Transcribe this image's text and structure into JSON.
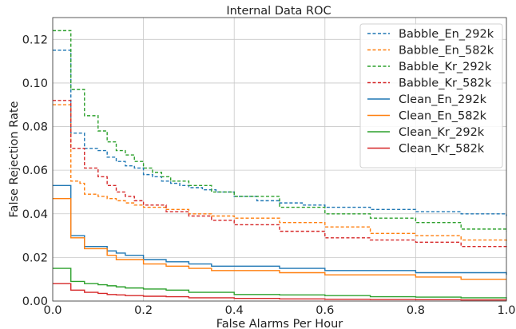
{
  "chart_data": {
    "type": "line",
    "title": "Internal Data ROC",
    "xlabel": "False Alarms Per Hour",
    "ylabel": "False Rejection Rate",
    "xlim": [
      0.0,
      1.0
    ],
    "ylim": [
      0.0,
      0.13
    ],
    "xticks": [
      0.0,
      0.2,
      0.4,
      0.6,
      0.8,
      1.0
    ],
    "xtick_labels": [
      "0.0",
      "0.2",
      "0.4",
      "0.6",
      "0.8",
      "1.0"
    ],
    "yticks": [
      0.0,
      0.02,
      0.04,
      0.06,
      0.08,
      0.1,
      0.12
    ],
    "ytick_labels": [
      "0.00",
      "0.02",
      "0.04",
      "0.06",
      "0.08",
      "0.10",
      "0.12"
    ],
    "grid": true,
    "legend_position": "upper right",
    "series": [
      {
        "name": "Babble_En_292k",
        "color": "#1f77b4",
        "style": "dashed",
        "x": [
          0,
          0.03,
          0.04,
          0.06,
          0.07,
          0.1,
          0.12,
          0.14,
          0.16,
          0.18,
          0.2,
          0.22,
          0.24,
          0.26,
          0.28,
          0.3,
          0.33,
          0.36,
          0.4,
          0.45,
          0.5,
          0.55,
          0.6,
          0.7,
          0.8,
          0.9,
          1.0
        ],
        "y": [
          0.115,
          0.115,
          0.077,
          0.077,
          0.07,
          0.069,
          0.066,
          0.064,
          0.062,
          0.061,
          0.058,
          0.057,
          0.055,
          0.054,
          0.053,
          0.052,
          0.051,
          0.05,
          0.048,
          0.046,
          0.045,
          0.044,
          0.043,
          0.042,
          0.041,
          0.04,
          0.039
        ]
      },
      {
        "name": "Babble_En_582k",
        "color": "#ff7f0e",
        "style": "dashed",
        "x": [
          0,
          0.03,
          0.04,
          0.06,
          0.07,
          0.1,
          0.12,
          0.14,
          0.16,
          0.18,
          0.2,
          0.25,
          0.3,
          0.35,
          0.4,
          0.5,
          0.6,
          0.7,
          0.8,
          0.9,
          1.0
        ],
        "y": [
          0.09,
          0.09,
          0.055,
          0.054,
          0.049,
          0.048,
          0.047,
          0.046,
          0.045,
          0.044,
          0.043,
          0.042,
          0.04,
          0.039,
          0.038,
          0.036,
          0.034,
          0.031,
          0.03,
          0.028,
          0.027
        ]
      },
      {
        "name": "Babble_Kr_292k",
        "color": "#2ca02c",
        "style": "dashed",
        "x": [
          0,
          0.03,
          0.04,
          0.06,
          0.07,
          0.1,
          0.12,
          0.14,
          0.16,
          0.18,
          0.2,
          0.22,
          0.24,
          0.26,
          0.3,
          0.35,
          0.4,
          0.5,
          0.6,
          0.7,
          0.8,
          0.9,
          1.0
        ],
        "y": [
          0.124,
          0.124,
          0.097,
          0.097,
          0.085,
          0.078,
          0.073,
          0.069,
          0.067,
          0.064,
          0.061,
          0.059,
          0.057,
          0.055,
          0.053,
          0.05,
          0.048,
          0.043,
          0.04,
          0.038,
          0.036,
          0.033,
          0.032
        ]
      },
      {
        "name": "Babble_Kr_582k",
        "color": "#d62728",
        "style": "dashed",
        "x": [
          0,
          0.03,
          0.04,
          0.06,
          0.07,
          0.1,
          0.12,
          0.14,
          0.16,
          0.18,
          0.2,
          0.25,
          0.3,
          0.35,
          0.4,
          0.5,
          0.6,
          0.7,
          0.8,
          0.9,
          1.0
        ],
        "y": [
          0.092,
          0.092,
          0.07,
          0.07,
          0.061,
          0.057,
          0.053,
          0.05,
          0.048,
          0.046,
          0.044,
          0.041,
          0.039,
          0.037,
          0.035,
          0.032,
          0.029,
          0.028,
          0.027,
          0.025,
          0.024
        ]
      },
      {
        "name": "Clean_En_292k",
        "color": "#1f77b4",
        "style": "solid",
        "x": [
          0,
          0.03,
          0.04,
          0.06,
          0.07,
          0.1,
          0.12,
          0.14,
          0.16,
          0.2,
          0.25,
          0.3,
          0.35,
          0.4,
          0.5,
          0.6,
          0.7,
          0.8,
          0.9,
          1.0
        ],
        "y": [
          0.053,
          0.053,
          0.03,
          0.03,
          0.025,
          0.025,
          0.023,
          0.022,
          0.021,
          0.019,
          0.018,
          0.017,
          0.016,
          0.016,
          0.015,
          0.014,
          0.014,
          0.013,
          0.013,
          0.012
        ]
      },
      {
        "name": "Clean_En_582k",
        "color": "#ff7f0e",
        "style": "solid",
        "x": [
          0,
          0.03,
          0.04,
          0.06,
          0.07,
          0.1,
          0.12,
          0.14,
          0.16,
          0.2,
          0.25,
          0.3,
          0.35,
          0.4,
          0.5,
          0.6,
          0.7,
          0.8,
          0.9,
          1.0
        ],
        "y": [
          0.047,
          0.047,
          0.029,
          0.029,
          0.024,
          0.024,
          0.021,
          0.019,
          0.019,
          0.017,
          0.016,
          0.015,
          0.014,
          0.014,
          0.013,
          0.012,
          0.012,
          0.011,
          0.01,
          0.01
        ]
      },
      {
        "name": "Clean_Kr_292k",
        "color": "#2ca02c",
        "style": "solid",
        "x": [
          0,
          0.03,
          0.04,
          0.06,
          0.07,
          0.1,
          0.12,
          0.14,
          0.16,
          0.2,
          0.25,
          0.3,
          0.4,
          0.5,
          0.6,
          0.7,
          0.8,
          0.9,
          1.0
        ],
        "y": [
          0.015,
          0.015,
          0.009,
          0.009,
          0.008,
          0.0075,
          0.007,
          0.0065,
          0.006,
          0.0055,
          0.005,
          0.004,
          0.003,
          0.0028,
          0.0025,
          0.002,
          0.0018,
          0.0015,
          0.0012
        ]
      },
      {
        "name": "Clean_Kr_582k",
        "color": "#d62728",
        "style": "solid",
        "x": [
          0,
          0.03,
          0.04,
          0.06,
          0.07,
          0.1,
          0.12,
          0.14,
          0.16,
          0.2,
          0.25,
          0.3,
          0.4,
          0.5,
          0.6,
          0.7,
          0.8,
          0.9,
          1.0
        ],
        "y": [
          0.008,
          0.008,
          0.005,
          0.005,
          0.004,
          0.0035,
          0.003,
          0.0028,
          0.0025,
          0.0022,
          0.002,
          0.0015,
          0.0012,
          0.001,
          0.0008,
          0.0007,
          0.0006,
          0.0005,
          0.0004
        ]
      }
    ]
  }
}
